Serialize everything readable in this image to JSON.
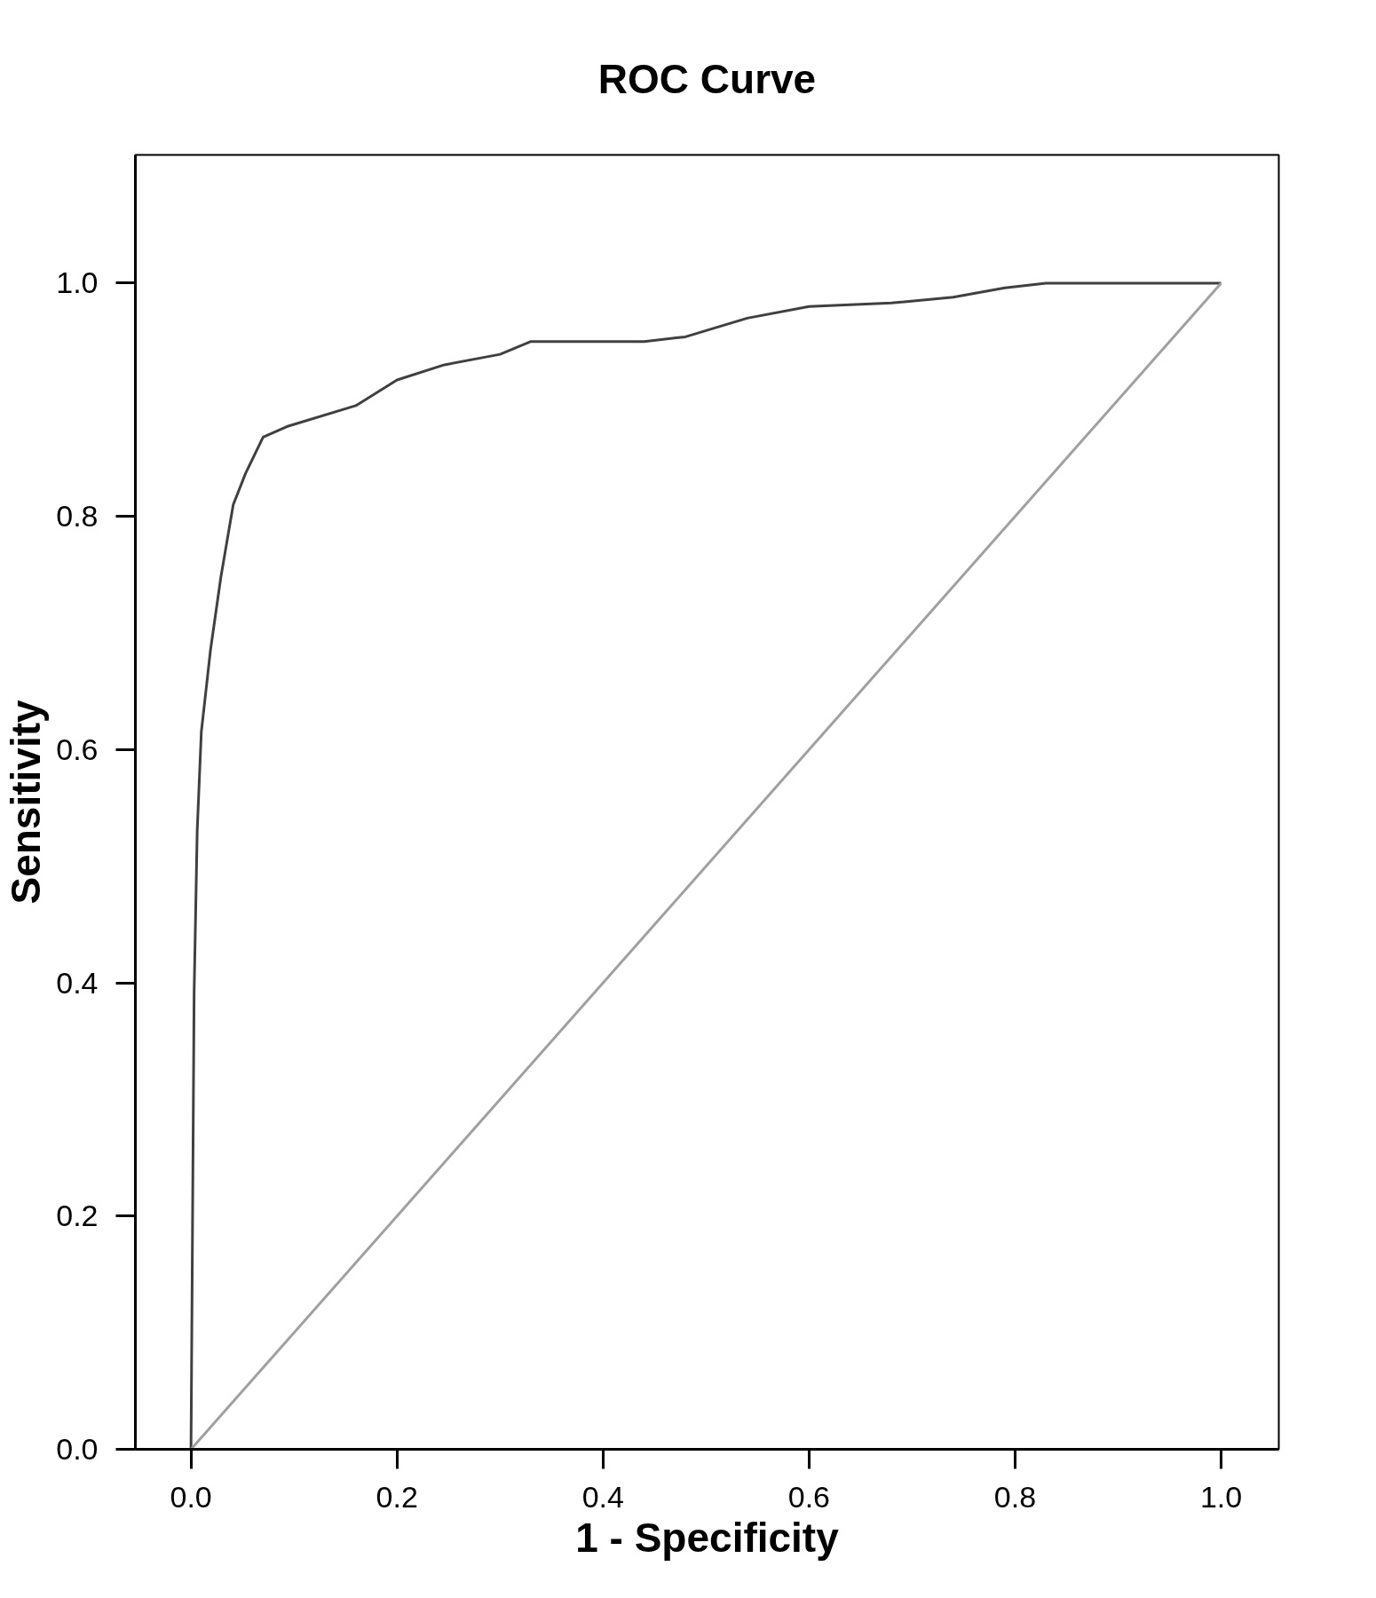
{
  "chart_data": {
    "type": "line",
    "title": "ROC Curve",
    "xlabel": "1 - Specificity",
    "ylabel": "Sensitivity",
    "xlim": [
      -0.054,
      1.056
    ],
    "ylim": [
      0,
      1.11
    ],
    "xticks": [
      {
        "value": 0,
        "label": "0.0"
      },
      0.2,
      0.4,
      0.6,
      0.8,
      {
        "value": 1,
        "label": "1.0"
      }
    ],
    "yticks": [
      {
        "value": 0,
        "label": "0.0"
      },
      0.2,
      0.4,
      0.6,
      0.8,
      {
        "value": 1,
        "label": "1.0"
      }
    ],
    "grid": false,
    "marker": "none",
    "line_style": "solid",
    "series": [
      {
        "color": "#404040",
        "x": [
          0,
          0.002,
          0.003,
          0.006,
          0.01,
          0.019,
          0.029,
          0.041,
          0.053,
          0.07,
          0.093,
          0.16,
          0.2,
          0.246,
          0.3,
          0.33,
          0.44,
          0.48,
          0.54,
          0.6,
          0.68,
          0.74,
          0.79,
          0.83,
          1
        ],
        "values": [
          0,
          0.26,
          0.39,
          0.53,
          0.615,
          0.686,
          0.748,
          0.81,
          0.837,
          0.868,
          0.877,
          0.895,
          0.917,
          0.93,
          0.939,
          0.95,
          0.95,
          0.954,
          0.97,
          0.98,
          0.983,
          0.988,
          0.996,
          1,
          1
        ]
      },
      {
        "color": "#a0a0a0",
        "x": [
          0,
          1
        ],
        "values": [
          0,
          1
        ]
      }
    ]
  }
}
